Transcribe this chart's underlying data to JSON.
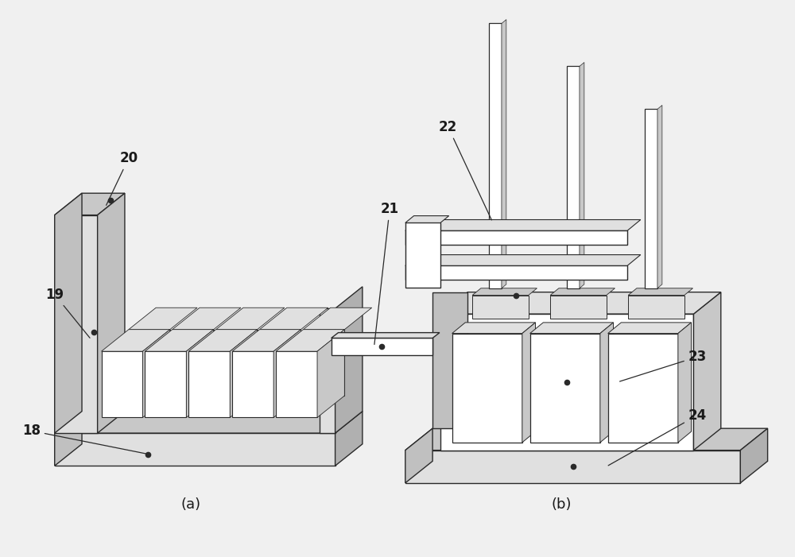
{
  "background_color": "#f0f0f0",
  "line_color": "#2a2a2a",
  "fill_white": "#ffffff",
  "fill_light": "#e0e0e0",
  "fill_medium": "#c8c8c8",
  "fill_dark": "#b0b0b0",
  "fill_shadow": "#c0c0c0",
  "label_fontsize": 12,
  "caption_fontsize": 13,
  "caption_a_text": "(a)",
  "caption_b_text": "(b)"
}
